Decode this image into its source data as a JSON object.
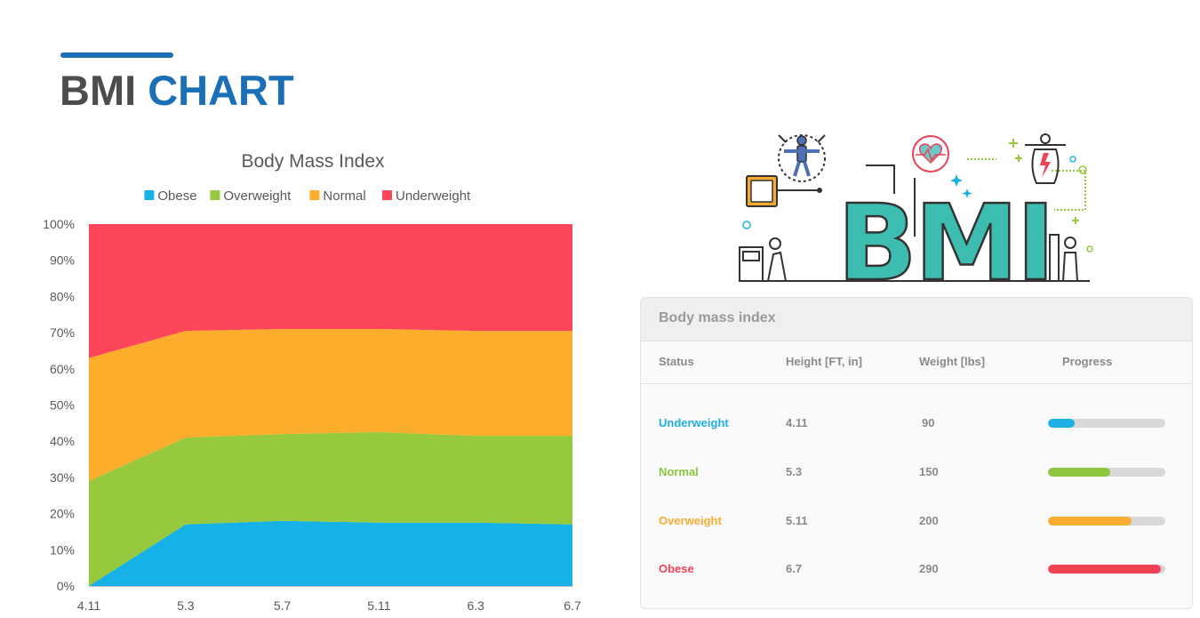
{
  "page": {
    "title_part1": "BMI",
    "title_part2": "CHART",
    "accent_color": "#1a6fb6"
  },
  "illustration": {
    "icon": "bmi-word-art-icon",
    "text": "BMI",
    "color": "#3dbdb0"
  },
  "chart_data": {
    "type": "area",
    "stacked": true,
    "percent": true,
    "title": "Body Mass Index",
    "xlabel": "",
    "ylabel": "",
    "x": [
      "4.11",
      "5.3",
      "5.7",
      "5.11",
      "6.3",
      "6.7"
    ],
    "series": [
      {
        "name": "Obese",
        "color": "#16b1e6",
        "values": [
          0,
          17,
          18,
          17.5,
          17.5,
          17
        ]
      },
      {
        "name": "Overweight",
        "color": "#96c93d",
        "values": [
          29,
          24,
          24,
          25,
          24,
          24.5
        ]
      },
      {
        "name": "Normal",
        "color": "#fcad2b",
        "values": [
          34,
          29.5,
          29,
          28.5,
          29,
          29
        ]
      },
      {
        "name": "Underweight",
        "color": "#fd465a",
        "values": [
          37,
          29.5,
          29,
          29,
          29.5,
          29.5
        ]
      }
    ],
    "yticks": [
      "0%",
      "10%",
      "20%",
      "30%",
      "40%",
      "50%",
      "60%",
      "70%",
      "80%",
      "90%",
      "100%"
    ],
    "ylim": [
      0,
      100
    ],
    "grid": false,
    "legend": "top"
  },
  "bmi_table": {
    "title": "Body mass index",
    "headers": {
      "status": "Status",
      "height": "Height [FT, in]",
      "weight": "Weight [lbs]",
      "progress": "Progress"
    },
    "rows": [
      {
        "status": "Underweight",
        "height": "4.11",
        "weight": "90",
        "progress": 0.23,
        "color": "#1eb0e2"
      },
      {
        "status": "Normal",
        "height": "5.3",
        "weight": "150",
        "progress": 0.53,
        "color": "#8cc63f"
      },
      {
        "status": "Overweight",
        "height": "5.11",
        "weight": "200",
        "progress": 0.71,
        "color": "#f9ac2f"
      },
      {
        "status": "Obese",
        "height": "6.7",
        "weight": "290",
        "progress": 0.96,
        "color": "#ef4257"
      }
    ]
  }
}
